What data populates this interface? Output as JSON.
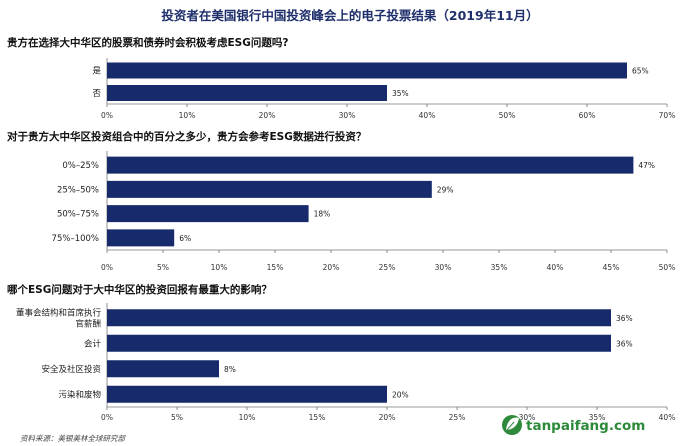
{
  "title": "投资者在美国银行中国投资峰会上的电子投票结果（2019年11月）",
  "source": "资料来源：美银美林全球研究部",
  "watermark": {
    "text": "tanpaifang.com",
    "icon": "leaf-logo-icon",
    "color": "#2c8a3a"
  },
  "colors": {
    "bar": "#172a6b"
  },
  "chart_data": [
    {
      "type": "bar",
      "orientation": "horizontal",
      "title": "贵方在选择大中华区的股票和债券时会积极考虑ESG问题吗?",
      "categories": [
        "是",
        "否"
      ],
      "values": [
        65,
        35
      ],
      "value_labels": [
        "65%",
        "35%"
      ],
      "xlim": [
        0,
        70
      ],
      "xticks": [
        "0%",
        "10%",
        "20%",
        "30%",
        "40%",
        "50%",
        "60%",
        "70%"
      ]
    },
    {
      "type": "bar",
      "orientation": "horizontal",
      "title": "对于贵方大中华区投资组合中的百分之多少，贵方会参考ESG数据进行投资？",
      "categories": [
        "0%–25%",
        "25%–50%",
        "50%–75%",
        "75%–100%"
      ],
      "values": [
        47,
        29,
        18,
        6
      ],
      "value_labels": [
        "47%",
        "29%",
        "18%",
        "6%"
      ],
      "xlim": [
        0,
        50
      ],
      "xticks": [
        "0%",
        "5%",
        "10%",
        "15%",
        "20%",
        "25%",
        "30%",
        "35%",
        "40%",
        "45%",
        "50%"
      ]
    },
    {
      "type": "bar",
      "orientation": "horizontal",
      "title": "哪个ESG问题对于大中华区的投资回报有最重大的影响？",
      "categories": [
        [
          "董事会结构和首席执行",
          "官薪酬"
        ],
        [
          "会计"
        ],
        [
          "安全及社区投资"
        ],
        [
          "污染和废物"
        ]
      ],
      "values": [
        36,
        36,
        8,
        20
      ],
      "value_labels": [
        "36%",
        "36%",
        "8%",
        "20%"
      ],
      "xlim": [
        0,
        40
      ],
      "xticks": [
        "0%",
        "5%",
        "10%",
        "15%",
        "20%",
        "25%",
        "30%",
        "35%",
        "40%"
      ]
    }
  ]
}
